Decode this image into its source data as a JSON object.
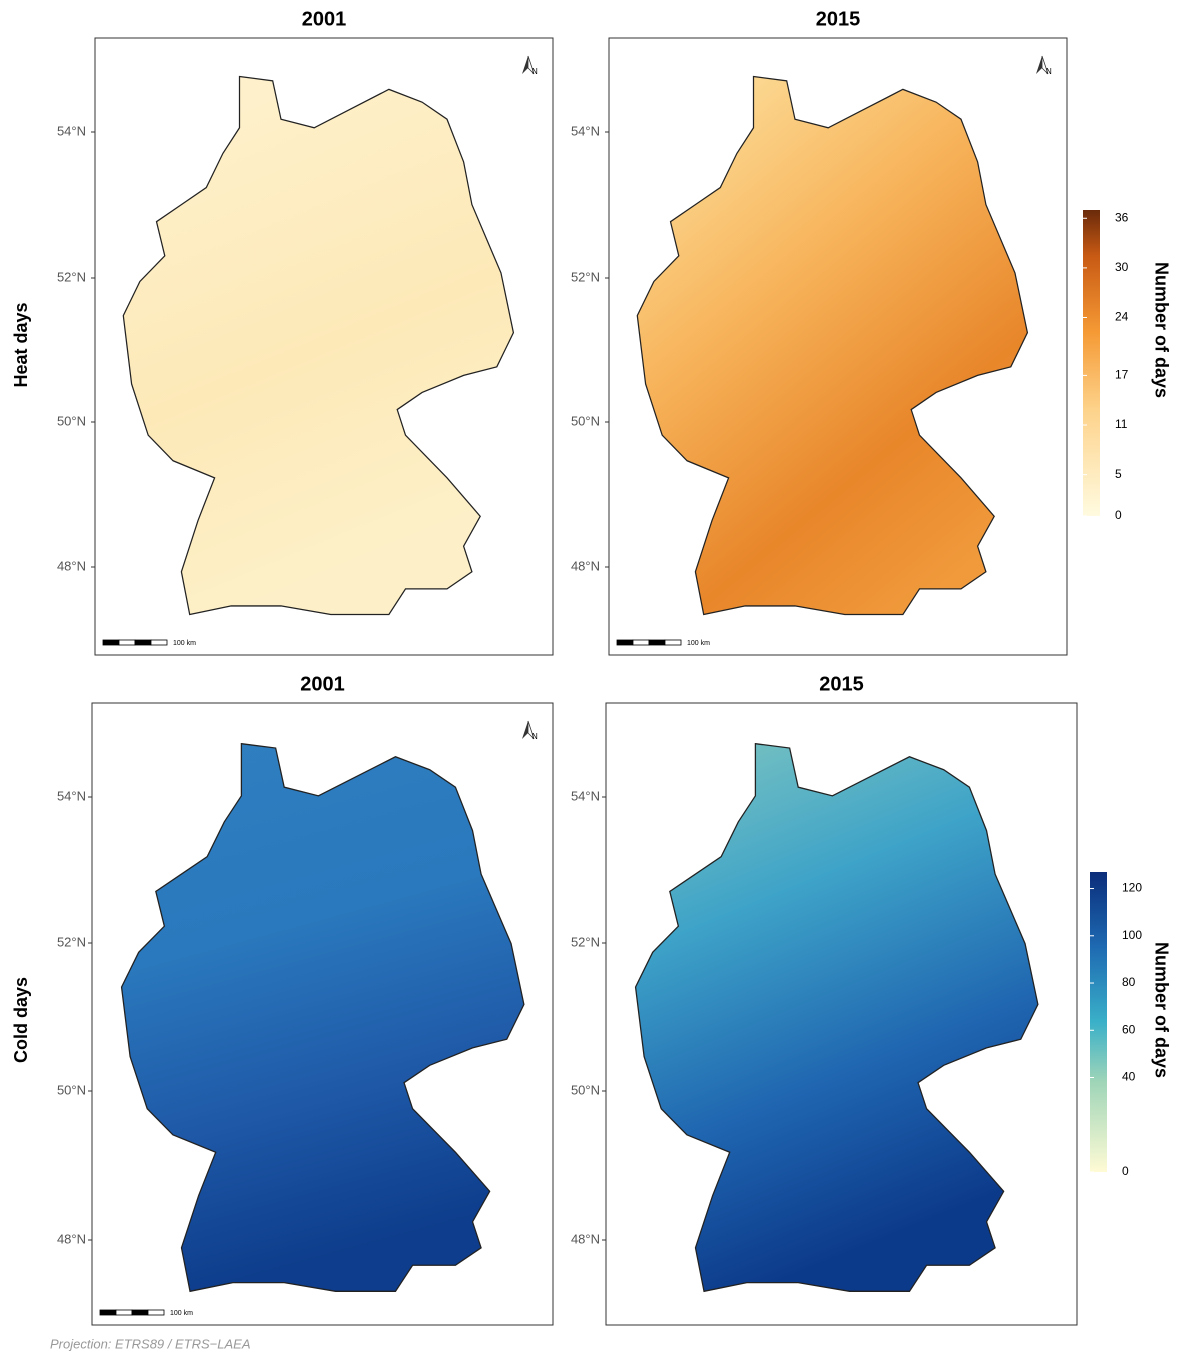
{
  "row_labels": [
    "Heat days",
    "Cold days"
  ],
  "panels": [
    {
      "title": "2001",
      "lat_labels": [
        "54°N",
        "52°N",
        "50°N",
        "48°N"
      ],
      "north": "N",
      "scale_label": "100 km"
    },
    {
      "title": "2015",
      "lat_labels": [
        "54°N",
        "52°N",
        "50°N",
        "48°N"
      ],
      "north": "N",
      "scale_label": "100 km"
    },
    {
      "title": "2001",
      "lat_labels": [
        "54°N",
        "52°N",
        "50°N",
        "48°N"
      ],
      "north": "N",
      "scale_label": "100 km"
    },
    {
      "title": "2015",
      "lat_labels": [
        "54°N",
        "52°N",
        "50°N",
        "48°N"
      ]
    }
  ],
  "colorbars": [
    {
      "label": "Number of days",
      "lim": [
        0,
        37
      ],
      "ticks": [
        0,
        5,
        11,
        17,
        24,
        30,
        36
      ]
    },
    {
      "label": "Number of days",
      "lim": [
        0,
        127
      ],
      "ticks": [
        0,
        40,
        60,
        80,
        100,
        120
      ]
    }
  ],
  "footnote": "Projection: ETRS89 / ETRS−LAEA"
}
